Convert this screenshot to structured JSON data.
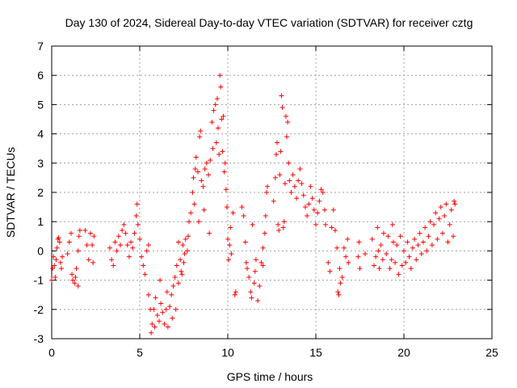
{
  "chart_data": {
    "type": "scatter",
    "title": "Day 130 of 2024, Sidereal Day-to-day VTEC variation (SDTVAR) for receiver cztg",
    "xlabel": "GPS time / hours",
    "ylabel": "SDTVAR / TECUs",
    "xlim": [
      0,
      25
    ],
    "ylim": [
      -3,
      7
    ],
    "xticks": [
      "0",
      "5",
      "10",
      "15",
      "20",
      "25"
    ],
    "yticks": [
      "-3",
      "-2",
      "-1",
      "0",
      "1",
      "2",
      "3",
      "4",
      "5",
      "6",
      "7"
    ],
    "grid": true,
    "marker": "+",
    "color": "#ff0000",
    "series": [
      {
        "name": "SDTVAR",
        "points": [
          [
            0.0,
            -1.0
          ],
          [
            0.05,
            -0.6
          ],
          [
            0.1,
            -0.2
          ],
          [
            0.15,
            -0.5
          ],
          [
            0.2,
            -0.9
          ],
          [
            0.25,
            -0.3
          ],
          [
            0.3,
            0.1
          ],
          [
            0.35,
            0.4
          ],
          [
            0.4,
            0.45
          ],
          [
            0.45,
            0.3
          ],
          [
            0.5,
            -0.4
          ],
          [
            0.55,
            -0.6
          ],
          [
            0.6,
            -0.2
          ],
          [
            0.9,
            -0.1
          ],
          [
            1.0,
            0.3
          ],
          [
            1.1,
            0.6
          ],
          [
            1.15,
            -0.8
          ],
          [
            1.2,
            -1.0
          ],
          [
            1.3,
            -1.1
          ],
          [
            1.4,
            -0.6
          ],
          [
            1.5,
            0.0
          ],
          [
            1.55,
            0.5
          ],
          [
            1.6,
            0.7
          ],
          [
            1.5,
            -1.2
          ],
          [
            1.35,
            -0.9
          ],
          [
            1.9,
            0.7
          ],
          [
            2.0,
            0.2
          ],
          [
            2.1,
            -0.3
          ],
          [
            2.2,
            0.6
          ],
          [
            2.3,
            0.2
          ],
          [
            2.35,
            -0.4
          ],
          [
            2.4,
            0.5
          ],
          [
            3.3,
            0.1
          ],
          [
            3.4,
            -0.3
          ],
          [
            3.5,
            -0.5
          ],
          [
            3.6,
            0.3
          ],
          [
            3.7,
            0.0
          ],
          [
            3.8,
            0.5
          ],
          [
            3.9,
            0.2
          ],
          [
            4.0,
            0.7
          ],
          [
            4.1,
            0.9
          ],
          [
            4.2,
            0.6
          ],
          [
            4.3,
            0.2
          ],
          [
            4.4,
            -0.2
          ],
          [
            4.5,
            0.3
          ],
          [
            4.6,
            0.1
          ],
          [
            4.7,
            0.6
          ],
          [
            4.8,
            1.2
          ],
          [
            4.85,
            1.6
          ],
          [
            4.9,
            0.9
          ],
          [
            5.0,
            0.4
          ],
          [
            5.1,
            -0.2
          ],
          [
            5.2,
            -0.5
          ],
          [
            5.3,
            -0.8
          ],
          [
            5.4,
            0.0
          ],
          [
            5.5,
            0.2
          ],
          [
            5.5,
            -1.5
          ],
          [
            5.6,
            -2.0
          ],
          [
            5.65,
            -2.8
          ],
          [
            5.7,
            -2.5
          ],
          [
            5.8,
            -2.0
          ],
          [
            5.85,
            -2.6
          ],
          [
            5.9,
            -1.6
          ],
          [
            6.0,
            -2.2
          ],
          [
            6.1,
            -2.4
          ],
          [
            6.15,
            -1.0
          ],
          [
            6.2,
            -1.8
          ],
          [
            6.3,
            -2.1
          ],
          [
            6.4,
            -2.5
          ],
          [
            6.5,
            -2.0
          ],
          [
            6.55,
            -1.4
          ],
          [
            6.6,
            -2.6
          ],
          [
            6.7,
            -1.9
          ],
          [
            6.8,
            -1.5
          ],
          [
            6.85,
            -2.3
          ],
          [
            6.9,
            -1.2
          ],
          [
            7.0,
            -0.9
          ],
          [
            7.05,
            -2.0
          ],
          [
            7.1,
            -0.5
          ],
          [
            7.2,
            -1.1
          ],
          [
            7.3,
            -0.3
          ],
          [
            7.4,
            -0.8
          ],
          [
            7.45,
            0.2
          ],
          [
            7.5,
            -0.4
          ],
          [
            7.6,
            0.4
          ],
          [
            7.7,
            0.0
          ],
          [
            7.2,
            0.3
          ],
          [
            7.35,
            -0.7
          ],
          [
            7.55,
            -0.1
          ],
          [
            7.75,
            0.5
          ],
          [
            7.8,
            1.0
          ],
          [
            7.9,
            1.3
          ],
          [
            8.0,
            2.0
          ],
          [
            8.05,
            2.5
          ],
          [
            8.1,
            1.6
          ],
          [
            8.15,
            2.8
          ],
          [
            8.2,
            3.2
          ],
          [
            8.3,
            2.7
          ],
          [
            8.35,
            1.0
          ],
          [
            8.4,
            3.9
          ],
          [
            8.45,
            4.1
          ],
          [
            8.5,
            2.4
          ],
          [
            8.6,
            2.2
          ],
          [
            8.65,
            1.4
          ],
          [
            8.7,
            2.8
          ],
          [
            8.8,
            3.0
          ],
          [
            8.9,
            2.6
          ],
          [
            8.95,
            0.6
          ],
          [
            9.0,
            3.1
          ],
          [
            9.1,
            4.4
          ],
          [
            9.15,
            3.5
          ],
          [
            9.2,
            4.8
          ],
          [
            9.3,
            5.0
          ],
          [
            9.35,
            3.7
          ],
          [
            9.4,
            5.2
          ],
          [
            9.45,
            4.2
          ],
          [
            9.5,
            3.3
          ],
          [
            9.55,
            6.0
          ],
          [
            9.6,
            5.6
          ],
          [
            9.65,
            4.5
          ],
          [
            9.7,
            3.4
          ],
          [
            9.75,
            4.6
          ],
          [
            9.8,
            2.7
          ],
          [
            9.85,
            3.0
          ],
          [
            9.9,
            2.1
          ],
          [
            9.95,
            1.5
          ],
          [
            10.0,
            0.4
          ],
          [
            10.05,
            -0.3
          ],
          [
            10.1,
            0.2
          ],
          [
            10.15,
            0.8
          ],
          [
            10.2,
            -0.1
          ],
          [
            10.3,
            1.3
          ],
          [
            10.4,
            -1.5
          ],
          [
            10.45,
            -1.4
          ],
          [
            10.8,
            1.5
          ],
          [
            10.9,
            1.2
          ],
          [
            11.0,
            0.3
          ],
          [
            11.05,
            -0.4
          ],
          [
            11.1,
            -0.6
          ],
          [
            11.2,
            -0.9
          ],
          [
            11.3,
            -1.4
          ],
          [
            11.35,
            -1.6
          ],
          [
            11.4,
            0.9
          ],
          [
            11.5,
            -1.1
          ],
          [
            11.55,
            -0.7
          ],
          [
            11.6,
            -0.3
          ],
          [
            11.7,
            -1.7
          ],
          [
            11.8,
            -1.2
          ],
          [
            11.9,
            -0.4
          ],
          [
            12.0,
            0.1
          ],
          [
            12.1,
            0.6
          ],
          [
            12.15,
            1.2
          ],
          [
            12.2,
            2.0
          ],
          [
            12.25,
            2.2
          ],
          [
            12.0,
            -0.5
          ],
          [
            12.6,
            1.7
          ],
          [
            12.7,
            2.5
          ],
          [
            12.75,
            3.3
          ],
          [
            12.8,
            3.7
          ],
          [
            12.85,
            0.9
          ],
          [
            12.9,
            0.7
          ],
          [
            12.95,
            2.6
          ],
          [
            13.0,
            3.4
          ],
          [
            13.05,
            5.3
          ],
          [
            13.1,
            4.9
          ],
          [
            13.15,
            0.8
          ],
          [
            13.2,
            1.0
          ],
          [
            13.25,
            2.3
          ],
          [
            13.3,
            4.6
          ],
          [
            13.35,
            3.9
          ],
          [
            13.4,
            4.4
          ],
          [
            13.45,
            3.0
          ],
          [
            13.5,
            2.4
          ],
          [
            13.6,
            2.0
          ],
          [
            13.7,
            2.6
          ],
          [
            13.8,
            2.2
          ],
          [
            13.9,
            1.8
          ],
          [
            14.0,
            2.4
          ],
          [
            14.1,
            2.8
          ],
          [
            14.2,
            2.3
          ],
          [
            14.3,
            1.9
          ],
          [
            14.4,
            1.5
          ],
          [
            14.5,
            1.2
          ],
          [
            14.6,
            1.6
          ],
          [
            14.7,
            2.2
          ],
          [
            14.8,
            1.8
          ],
          [
            14.9,
            1.4
          ],
          [
            15.0,
            0.9
          ],
          [
            15.1,
            1.3
          ],
          [
            15.2,
            1.7
          ],
          [
            15.3,
            2.1
          ],
          [
            15.4,
            2.0
          ],
          [
            15.5,
            1.4
          ],
          [
            15.55,
            0.9
          ],
          [
            15.7,
            -0.4
          ],
          [
            15.8,
            -0.7
          ],
          [
            15.9,
            0.8
          ],
          [
            16.0,
            1.4
          ],
          [
            16.1,
            0.7
          ],
          [
            16.2,
            0.1
          ],
          [
            16.25,
            -1.4
          ],
          [
            16.3,
            -1.5
          ],
          [
            16.35,
            -0.6
          ],
          [
            16.4,
            -1.1
          ],
          [
            16.5,
            -0.9
          ],
          [
            16.6,
            0.1
          ],
          [
            16.7,
            -0.2
          ],
          [
            16.8,
            0.4
          ],
          [
            16.85,
            -0.4
          ],
          [
            17.4,
            -0.2
          ],
          [
            17.45,
            0.3
          ],
          [
            17.5,
            -0.6
          ],
          [
            17.8,
            -0.1
          ],
          [
            18.2,
            0.4
          ],
          [
            18.3,
            -0.5
          ],
          [
            18.4,
            -0.2
          ],
          [
            18.5,
            0.8
          ],
          [
            18.55,
            0.0
          ],
          [
            18.6,
            -0.6
          ],
          [
            18.7,
            0.2
          ],
          [
            18.8,
            -0.3
          ],
          [
            18.85,
            0.6
          ],
          [
            19.0,
            -0.1
          ],
          [
            19.1,
            0.5
          ],
          [
            19.2,
            -0.6
          ],
          [
            19.3,
            -0.3
          ],
          [
            19.35,
            0.9
          ],
          [
            19.4,
            0.3
          ],
          [
            19.5,
            -0.4
          ],
          [
            19.6,
            0.2
          ],
          [
            19.7,
            -0.8
          ],
          [
            19.8,
            0.5
          ],
          [
            19.9,
            -0.5
          ],
          [
            20.0,
            0.0
          ],
          [
            20.1,
            -0.4
          ],
          [
            20.2,
            0.3
          ],
          [
            20.3,
            -0.2
          ],
          [
            20.4,
            -0.6
          ],
          [
            20.5,
            0.1
          ],
          [
            20.6,
            0.4
          ],
          [
            20.7,
            -0.3
          ],
          [
            20.8,
            0.2
          ],
          [
            20.9,
            0.6
          ],
          [
            21.0,
            -0.1
          ],
          [
            21.1,
            0.3
          ],
          [
            21.2,
            0.8
          ],
          [
            21.3,
            0.0
          ],
          [
            21.4,
            0.5
          ],
          [
            21.5,
            1.0
          ],
          [
            21.6,
            0.2
          ],
          [
            21.7,
            0.9
          ],
          [
            21.8,
            1.3
          ],
          [
            21.9,
            0.4
          ],
          [
            22.0,
            1.1
          ],
          [
            22.1,
            1.5
          ],
          [
            22.2,
            0.6
          ],
          [
            22.3,
            1.2
          ],
          [
            22.4,
            1.6
          ],
          [
            22.5,
            0.3
          ],
          [
            22.6,
            0.9
          ],
          [
            22.7,
            1.4
          ],
          [
            22.8,
            0.5
          ],
          [
            22.85,
            1.7
          ],
          [
            22.9,
            1.6
          ]
        ]
      }
    ]
  }
}
